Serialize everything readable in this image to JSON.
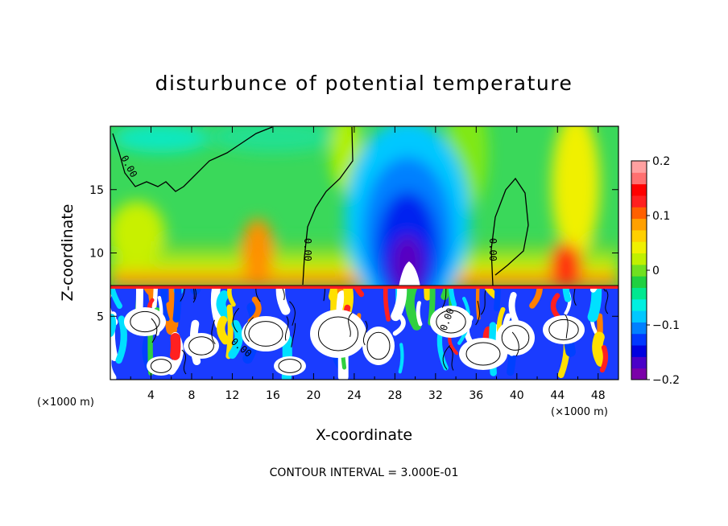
{
  "chart_data": {
    "type": "heatmap",
    "title": "disturbunce of potential temperature",
    "xlabel": "X-coordinate",
    "ylabel": "Z-coordinate",
    "x_unit": "(×1000 m)",
    "x_unit_right": "(×1000 m)",
    "xlim": [
      0,
      50
    ],
    "ylim": [
      0,
      20
    ],
    "x_ticks": [
      "4",
      "8",
      "12",
      "16",
      "20",
      "24",
      "28",
      "32",
      "36",
      "40",
      "44",
      "48"
    ],
    "y_ticks": [
      "5",
      "10",
      "15"
    ],
    "x_tick_values": [
      4,
      8,
      12,
      16,
      20,
      24,
      28,
      32,
      36,
      40,
      44,
      48
    ],
    "y_tick_values": [
      5,
      10,
      15
    ],
    "colorbar": {
      "range": [
        -0.2,
        0.2
      ],
      "tick_labels": [
        "0.2",
        "0.1",
        "0",
        "−0.1",
        "−0.2"
      ],
      "tick_values": [
        0.2,
        0.1,
        0,
        -0.1,
        -0.2
      ],
      "colors": [
        "#7b00a8",
        "#4a00c8",
        "#0000e0",
        "#0038ff",
        "#0080ff",
        "#00c8ff",
        "#00f0e0",
        "#00e890",
        "#20d040",
        "#70e020",
        "#c0f000",
        "#f0f000",
        "#ffd000",
        "#ffa000",
        "#ff6000",
        "#ff2020",
        "#ff0000",
        "#ff7070",
        "#ffa0a0"
      ]
    },
    "contour_interval_text": "CONTOUR INTERVAL = 3.000E-01",
    "contour_labels": [
      "0.00",
      "0.00",
      "0.00",
      "0.00",
      "0.00"
    ],
    "features": [
      {
        "name": "cold core",
        "x": 29.5,
        "z": 10.5,
        "value": -0.2
      },
      {
        "name": "warm patch",
        "x": 14.5,
        "z": 10.5,
        "value": 0.12
      },
      {
        "name": "warm patch",
        "x": 45,
        "z": 9,
        "value": 0.15
      },
      {
        "name": "warm band",
        "x": 46,
        "z": 17,
        "value": 0.07
      },
      {
        "name": "interface",
        "z": 7.3
      }
    ]
  }
}
